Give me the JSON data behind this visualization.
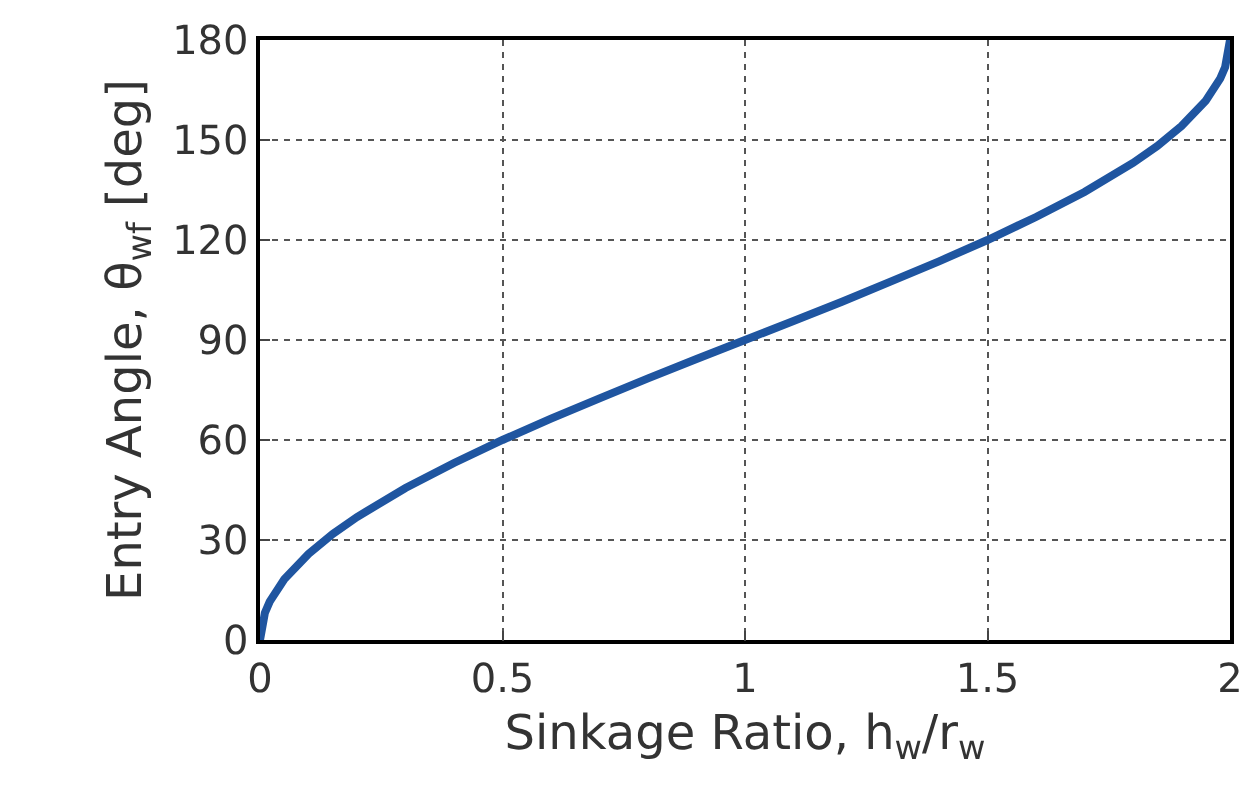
{
  "chart_data": {
    "type": "line",
    "xlabel": "Sinkage Ratio, h$_{w}$/r$_{w}$",
    "ylabel": "Entry Angle, θ$_{wf}$ [deg]",
    "x": [
      0,
      0.01,
      0.02,
      0.05,
      0.1,
      0.15,
      0.2,
      0.3,
      0.4,
      0.5,
      0.6,
      0.7,
      0.8,
      0.9,
      1.0,
      1.1,
      1.2,
      1.3,
      1.4,
      1.5,
      1.6,
      1.7,
      1.8,
      1.85,
      1.9,
      1.95,
      1.98,
      1.99,
      2.0
    ],
    "series": [
      {
        "color": "#1f55a0",
        "values": [
          0,
          8.1,
          11.5,
          18.2,
          25.8,
          31.8,
          36.9,
          45.6,
          53.1,
          60,
          66.4,
          72.5,
          78.5,
          84.3,
          90,
          95.7,
          101.5,
          107.5,
          113.6,
          120,
          126.9,
          134.4,
          143.1,
          148.2,
          154.2,
          161.8,
          168.5,
          171.9,
          180
        ]
      }
    ],
    "xlim": [
      0,
      2
    ],
    "ylim": [
      0,
      180
    ],
    "xticks": [
      0,
      0.5,
      1,
      1.5,
      2
    ],
    "yticks": [
      0,
      30,
      60,
      90,
      120,
      150,
      180
    ],
    "grid": true,
    "legend": false,
    "marker": "none",
    "line_style": "solid"
  }
}
